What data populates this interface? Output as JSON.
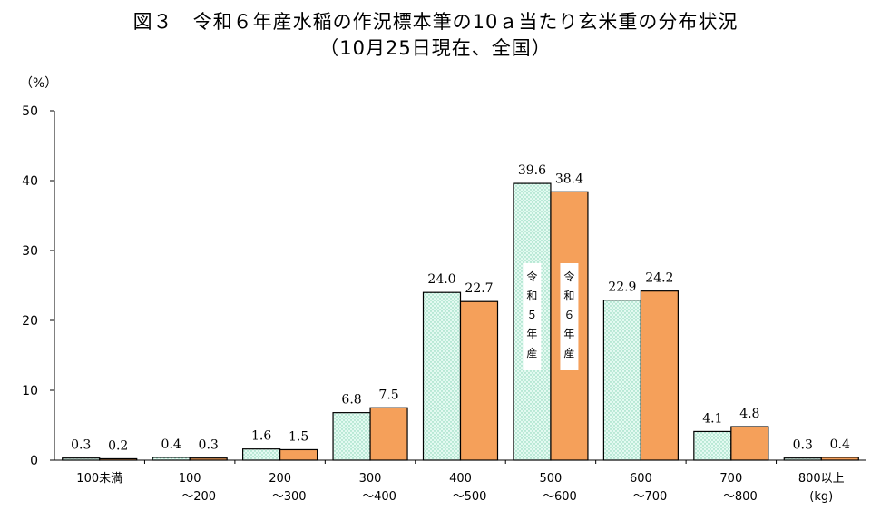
{
  "title_line1": "図３　令和６年産水稲の作況標本筆の10ａ当たり玄米重の分布状況",
  "title_line2": "（10月25日現在、全国）",
  "chart_data": {
    "type": "bar",
    "ylabel": "（%）",
    "xunit": "(kg)",
    "ylim": [
      0,
      50
    ],
    "yticks": [
      0,
      10,
      20,
      30,
      40,
      50
    ],
    "categories": [
      [
        "100未満"
      ],
      [
        "100",
        "～200"
      ],
      [
        "200",
        "～300"
      ],
      [
        "300",
        "～400"
      ],
      [
        "400",
        "～500"
      ],
      [
        "500",
        "～600"
      ],
      [
        "600",
        "～700"
      ],
      [
        "700",
        "～800"
      ],
      [
        "800以上",
        "(kg)"
      ]
    ],
    "series": [
      {
        "name": "令和５年産",
        "legend_chars": [
          "令",
          "和",
          "５",
          "年",
          "産"
        ],
        "color": "#d9f7ec",
        "values": [
          0.3,
          0.4,
          1.6,
          6.8,
          24.0,
          39.6,
          22.9,
          4.1,
          0.3
        ],
        "labels": [
          "0.3",
          "0.4",
          "1.6",
          "6.8",
          "24.0",
          "39.6",
          "22.9",
          "4.1",
          "0.3"
        ]
      },
      {
        "name": "令和６年産",
        "legend_chars": [
          "令",
          "和",
          "６",
          "年",
          "産"
        ],
        "color": "#f5a05a",
        "values": [
          0.2,
          0.3,
          1.5,
          7.5,
          22.7,
          38.4,
          24.2,
          4.8,
          0.4
        ],
        "labels": [
          "0.2",
          "0.3",
          "1.5",
          "7.5",
          "22.7",
          "38.4",
          "24.2",
          "4.8",
          "0.4"
        ]
      }
    ]
  }
}
